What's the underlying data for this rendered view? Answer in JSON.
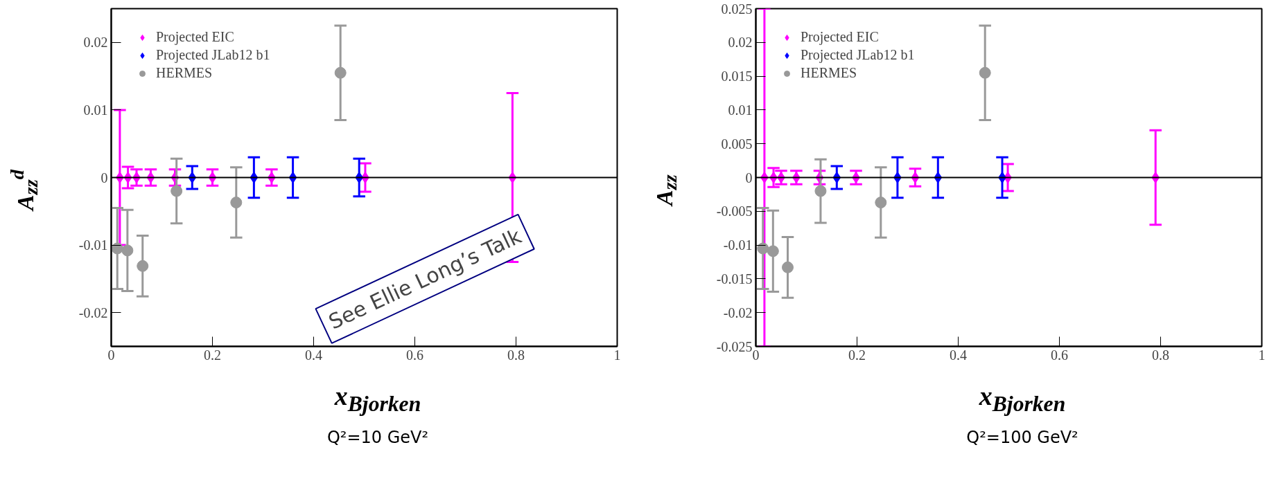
{
  "chart_data": [
    {
      "type": "scatter",
      "xlabel": "x$_{Bjorken}$",
      "ylabel": "A$_{zz}$$^{d}$",
      "xlim": [
        0,
        1
      ],
      "ylim": [
        -0.025,
        0.025
      ],
      "xticks": [
        0,
        0.2,
        0.4,
        0.6,
        0.8,
        1
      ],
      "yticks": [
        -0.02,
        -0.01,
        0,
        0.01,
        0.02
      ],
      "grid": false,
      "legend": "top left",
      "ref_lines": [
        {
          "axis": "y",
          "value": 0,
          "color": "#000000"
        }
      ],
      "annotations": [
        "Q²=10 GeV²",
        "See Ellie Long’s Talk"
      ],
      "series": [
        {
          "name": "Projected EIC",
          "color": "#ff00ff",
          "marker": "diamond",
          "x": [
            0.017,
            0.033,
            0.05,
            0.078,
            0.126,
            0.2,
            0.317,
            0.502,
            0.793
          ],
          "values": [
            0,
            0,
            0,
            0,
            0,
            0,
            0,
            0,
            0
          ],
          "errors": [
            0.01,
            0.0016,
            0.0012,
            0.0012,
            0.0012,
            0.0012,
            0.0012,
            0.0021,
            0.0125
          ]
        },
        {
          "name": "Projected JLab12 b1",
          "color": "#0000ff",
          "marker": "diamond",
          "x": [
            0.16,
            0.282,
            0.359,
            0.49
          ],
          "values": [
            0,
            0,
            0,
            0
          ],
          "errors": [
            0.0017,
            0.003,
            0.003,
            0.0028
          ]
        },
        {
          "name": "HERMES",
          "color": "#999999",
          "marker": "circle",
          "x": [
            0.012,
            0.032,
            0.062,
            0.129,
            0.247,
            0.453
          ],
          "values": [
            -0.0105,
            -0.0108,
            -0.0131,
            -0.002,
            -0.0037,
            0.0155
          ],
          "errors": [
            0.006,
            0.006,
            0.0045,
            0.0048,
            0.0052,
            0.007
          ]
        }
      ]
    },
    {
      "type": "scatter",
      "xlabel": "x$_{Bjorken}$",
      "ylabel": "A$_{zz}$",
      "xlim": [
        0,
        1
      ],
      "ylim": [
        -0.025,
        0.025
      ],
      "xticks": [
        0,
        0.2,
        0.4,
        0.6,
        0.8,
        1
      ],
      "yticks": [
        -0.025,
        -0.02,
        -0.015,
        -0.01,
        -0.005,
        0,
        0.005,
        0.01,
        0.015,
        0.02,
        0.025
      ],
      "grid": false,
      "legend": "top left",
      "ref_lines": [
        {
          "axis": "y",
          "value": 0,
          "color": "#000000"
        }
      ],
      "annotations": [
        "Q²=100 GeV²"
      ],
      "series": [
        {
          "name": "Projected EIC",
          "color": "#ff00ff",
          "marker": "diamond",
          "x": [
            0.017,
            0.035,
            0.05,
            0.08,
            0.126,
            0.198,
            0.315,
            0.498,
            0.79
          ],
          "values": [
            0,
            0,
            0,
            0,
            0,
            0,
            0,
            0,
            0
          ],
          "errors": [
            0.025,
            0.0014,
            0.001,
            0.001,
            0.001,
            0.001,
            0.0013,
            0.002,
            0.007
          ]
        },
        {
          "name": "Projected JLab12 b1",
          "color": "#0000ff",
          "marker": "diamond",
          "x": [
            0.16,
            0.28,
            0.36,
            0.487
          ],
          "values": [
            0,
            0,
            0,
            0
          ],
          "errors": [
            0.0017,
            0.003,
            0.003,
            0.003
          ]
        },
        {
          "name": "HERMES",
          "color": "#999999",
          "marker": "circle",
          "x": [
            0.014,
            0.034,
            0.063,
            0.128,
            0.247,
            0.453
          ],
          "values": [
            -0.0105,
            -0.0109,
            -0.0133,
            -0.002,
            -0.0037,
            0.0155
          ],
          "errors": [
            0.006,
            0.006,
            0.0045,
            0.0047,
            0.0052,
            0.007
          ]
        }
      ]
    }
  ]
}
